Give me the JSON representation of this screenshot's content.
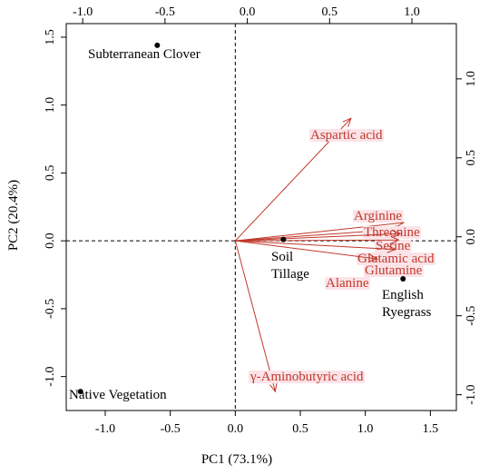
{
  "chart_data": {
    "type": "scatter",
    "subtype": "biplot",
    "xlabel": "PC1 (73.1%)",
    "ylabel": "PC2 (20.4%)",
    "xlim": [
      -1.3,
      1.7
    ],
    "ylim": [
      -1.25,
      1.6
    ],
    "top_xlim": [
      -1.1,
      1.27
    ],
    "right_ylim": [
      -1.1,
      1.35
    ],
    "bottom_ticks": [
      "-1.0",
      "-0.5",
      "0.0",
      "0.5",
      "1.0",
      "1.5"
    ],
    "left_ticks": [
      "-1.0",
      "-0.5",
      "0.0",
      "0.5",
      "1.0",
      "1.5"
    ],
    "top_ticks": [
      "-1.0",
      "-0.5",
      "0.0",
      "0.5",
      "1.0"
    ],
    "right_ticks": [
      "-1.0",
      "-0.5",
      "0.0",
      "0.5",
      "1.0"
    ],
    "reference_lines": {
      "x": 0,
      "y": 0,
      "style": "dashed"
    },
    "points": [
      {
        "label": "Subterranean Clover",
        "x": -0.6,
        "y": 1.44
      },
      {
        "label": "Native Vegetation",
        "x": -1.19,
        "y": -1.11
      },
      {
        "label": "Soil Tillage",
        "x": 0.37,
        "y": 0.01
      },
      {
        "label": "English Ryegrass",
        "x": 1.29,
        "y": -0.28
      }
    ],
    "vectors": [
      {
        "label": "Aspartic acid",
        "x": 0.63,
        "y": 0.75
      },
      {
        "label": "Arginine",
        "x": 0.95,
        "y": 0.09
      },
      {
        "label": "Threonine",
        "x": 0.95,
        "y": 0.05
      },
      {
        "label": "Serine",
        "x": 0.93,
        "y": 0.02
      },
      {
        "label": "Glutamic acid",
        "x": 0.92,
        "y": -0.02
      },
      {
        "label": "Glutamine",
        "x": 0.9,
        "y": -0.08
      },
      {
        "label": "Alanine",
        "x": 0.79,
        "y": -0.14
      },
      {
        "label": "γ-Aminobutyric acid",
        "x": 0.17,
        "y": -0.98
      }
    ]
  }
}
